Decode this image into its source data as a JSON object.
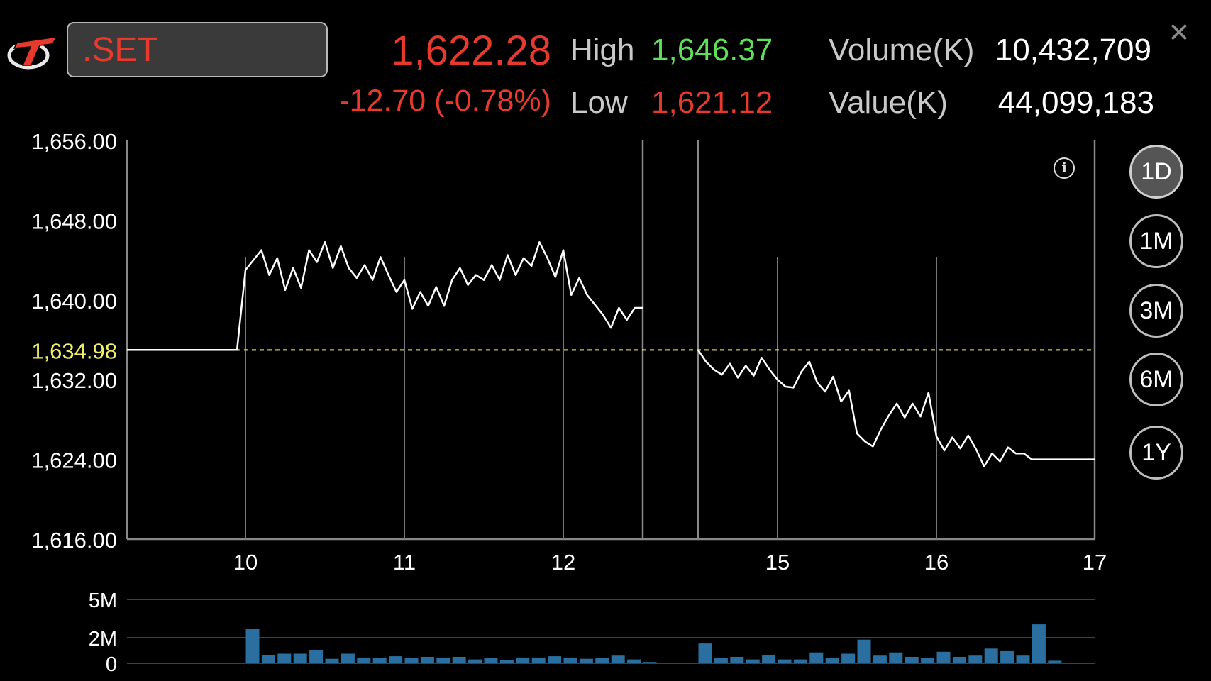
{
  "header": {
    "symbol": ".SET",
    "price": "1,622.28",
    "change": "-12.70 (-0.78%)",
    "high_label": "High",
    "high_value": "1,646.37",
    "low_label": "Low",
    "low_value": "1,621.12",
    "volume_label": "Volume(K)",
    "volume_value": "10,432,709",
    "value_label": "Value(K)",
    "value_value": "44,099,183",
    "close_icon": "close-icon",
    "logo_icon": "brand-logo-icon",
    "info_icon": "info-icon"
  },
  "range_buttons": [
    {
      "label": "1D",
      "active": true
    },
    {
      "label": "1M",
      "active": false
    },
    {
      "label": "3M",
      "active": false
    },
    {
      "label": "6M",
      "active": false
    },
    {
      "label": "1Y",
      "active": false
    }
  ],
  "colors": {
    "up": "#5fe05a",
    "down": "#e8392d",
    "reference": "#f2ef6b",
    "volume": "#2a6fa0",
    "line": "#ffffff"
  },
  "chart_data": [
    {
      "type": "line",
      "title": "",
      "ylim": [
        1616,
        1656
      ],
      "y_ticks": [
        "1,656.00",
        "1,648.00",
        "1,640.00",
        "1,632.00",
        "1,624.00",
        "1,616.00"
      ],
      "reference_line": {
        "value": 1634.98,
        "label": "1,634.98"
      },
      "x_ticks": [
        "10",
        "11",
        "12",
        "15",
        "16",
        "17"
      ],
      "session_break": {
        "from": 12.5,
        "to": 14.5
      },
      "series": [
        {
          "points": [
            [
              9.3,
              1634.98
            ],
            [
              9.95,
              1634.98
            ],
            [
              10.0,
              1643.0
            ],
            [
              10.05,
              1644.0
            ],
            [
              10.1,
              1645.0
            ],
            [
              10.15,
              1642.5
            ],
            [
              10.2,
              1644.2
            ],
            [
              10.25,
              1641.0
            ],
            [
              10.3,
              1643.2
            ],
            [
              10.35,
              1641.2
            ],
            [
              10.4,
              1645.0
            ],
            [
              10.45,
              1643.8
            ],
            [
              10.5,
              1645.8
            ],
            [
              10.55,
              1643.2
            ],
            [
              10.6,
              1645.4
            ],
            [
              10.65,
              1643.2
            ],
            [
              10.7,
              1642.2
            ],
            [
              10.75,
              1643.5
            ],
            [
              10.8,
              1642.0
            ],
            [
              10.85,
              1644.3
            ],
            [
              10.9,
              1642.5
            ],
            [
              10.95,
              1640.8
            ],
            [
              11.0,
              1642.0
            ],
            [
              11.05,
              1639.1
            ],
            [
              11.1,
              1640.8
            ],
            [
              11.15,
              1639.4
            ],
            [
              11.2,
              1641.3
            ],
            [
              11.25,
              1639.4
            ],
            [
              11.3,
              1642.0
            ],
            [
              11.35,
              1643.2
            ],
            [
              11.4,
              1641.5
            ],
            [
              11.45,
              1642.5
            ],
            [
              11.5,
              1642.0
            ],
            [
              11.55,
              1643.5
            ],
            [
              11.6,
              1642.0
            ],
            [
              11.65,
              1644.5
            ],
            [
              11.7,
              1642.5
            ],
            [
              11.75,
              1644.2
            ],
            [
              11.8,
              1643.4
            ],
            [
              11.85,
              1645.8
            ],
            [
              11.9,
              1644.2
            ],
            [
              11.95,
              1642.3
            ],
            [
              12.0,
              1645.0
            ],
            [
              12.05,
              1640.5
            ],
            [
              12.1,
              1642.2
            ],
            [
              12.15,
              1640.5
            ],
            [
              12.2,
              1639.5
            ],
            [
              12.25,
              1638.5
            ],
            [
              12.3,
              1637.2
            ],
            [
              12.35,
              1639.2
            ],
            [
              12.4,
              1638.0
            ],
            [
              12.45,
              1639.2
            ],
            [
              12.5,
              1639.2
            ]
          ]
        },
        {
          "points": [
            [
              14.5,
              1634.98
            ],
            [
              14.55,
              1633.8
            ],
            [
              14.6,
              1633.0
            ],
            [
              14.65,
              1632.5
            ],
            [
              14.7,
              1633.6
            ],
            [
              14.75,
              1632.2
            ],
            [
              14.8,
              1633.4
            ],
            [
              14.85,
              1632.4
            ],
            [
              14.9,
              1634.2
            ],
            [
              14.95,
              1633.0
            ],
            [
              15.0,
              1632.0
            ],
            [
              15.05,
              1631.3
            ],
            [
              15.1,
              1631.2
            ],
            [
              15.15,
              1632.8
            ],
            [
              15.2,
              1633.8
            ],
            [
              15.25,
              1631.7
            ],
            [
              15.3,
              1630.8
            ],
            [
              15.35,
              1632.3
            ],
            [
              15.4,
              1629.8
            ],
            [
              15.45,
              1630.9
            ],
            [
              15.5,
              1626.6
            ],
            [
              15.55,
              1625.8
            ],
            [
              15.6,
              1625.3
            ],
            [
              15.65,
              1627.0
            ],
            [
              15.7,
              1628.4
            ],
            [
              15.75,
              1629.6
            ],
            [
              15.8,
              1628.2
            ],
            [
              15.85,
              1629.6
            ],
            [
              15.9,
              1628.3
            ],
            [
              15.95,
              1630.7
            ],
            [
              16.0,
              1626.3
            ],
            [
              16.05,
              1624.9
            ],
            [
              16.1,
              1626.2
            ],
            [
              16.15,
              1625.1
            ],
            [
              16.2,
              1626.4
            ],
            [
              16.25,
              1625.0
            ],
            [
              16.3,
              1623.3
            ],
            [
              16.35,
              1624.6
            ],
            [
              16.4,
              1623.8
            ],
            [
              16.45,
              1625.2
            ],
            [
              16.5,
              1624.6
            ],
            [
              16.55,
              1624.6
            ],
            [
              16.6,
              1624.0
            ],
            [
              17.0,
              1624.0
            ]
          ]
        }
      ]
    },
    {
      "type": "bar",
      "title": "",
      "ylim": [
        0,
        5
      ],
      "y_ticks": [
        "5M",
        "2M",
        "0"
      ],
      "x": [
        10.0,
        10.1,
        10.2,
        10.3,
        10.4,
        10.5,
        10.6,
        10.7,
        10.8,
        10.9,
        11.0,
        11.1,
        11.2,
        11.3,
        11.4,
        11.5,
        11.6,
        11.7,
        11.8,
        11.9,
        12.0,
        12.1,
        12.2,
        12.3,
        12.4,
        12.5,
        14.5,
        14.6,
        14.7,
        14.8,
        14.9,
        15.0,
        15.1,
        15.2,
        15.3,
        15.4,
        15.5,
        15.6,
        15.7,
        15.8,
        15.9,
        16.0,
        16.1,
        16.2,
        16.3,
        16.4,
        16.5,
        16.6,
        16.7
      ],
      "values": [
        2.7,
        0.65,
        0.75,
        0.75,
        1.0,
        0.35,
        0.75,
        0.45,
        0.4,
        0.55,
        0.4,
        0.5,
        0.45,
        0.5,
        0.3,
        0.4,
        0.25,
        0.45,
        0.45,
        0.55,
        0.45,
        0.35,
        0.4,
        0.6,
        0.3,
        0.1,
        1.55,
        0.4,
        0.5,
        0.3,
        0.65,
        0.3,
        0.3,
        0.85,
        0.4,
        0.75,
        1.85,
        0.6,
        0.85,
        0.5,
        0.4,
        0.9,
        0.5,
        0.6,
        1.15,
        0.95,
        0.6,
        3.05,
        0.2
      ]
    }
  ]
}
